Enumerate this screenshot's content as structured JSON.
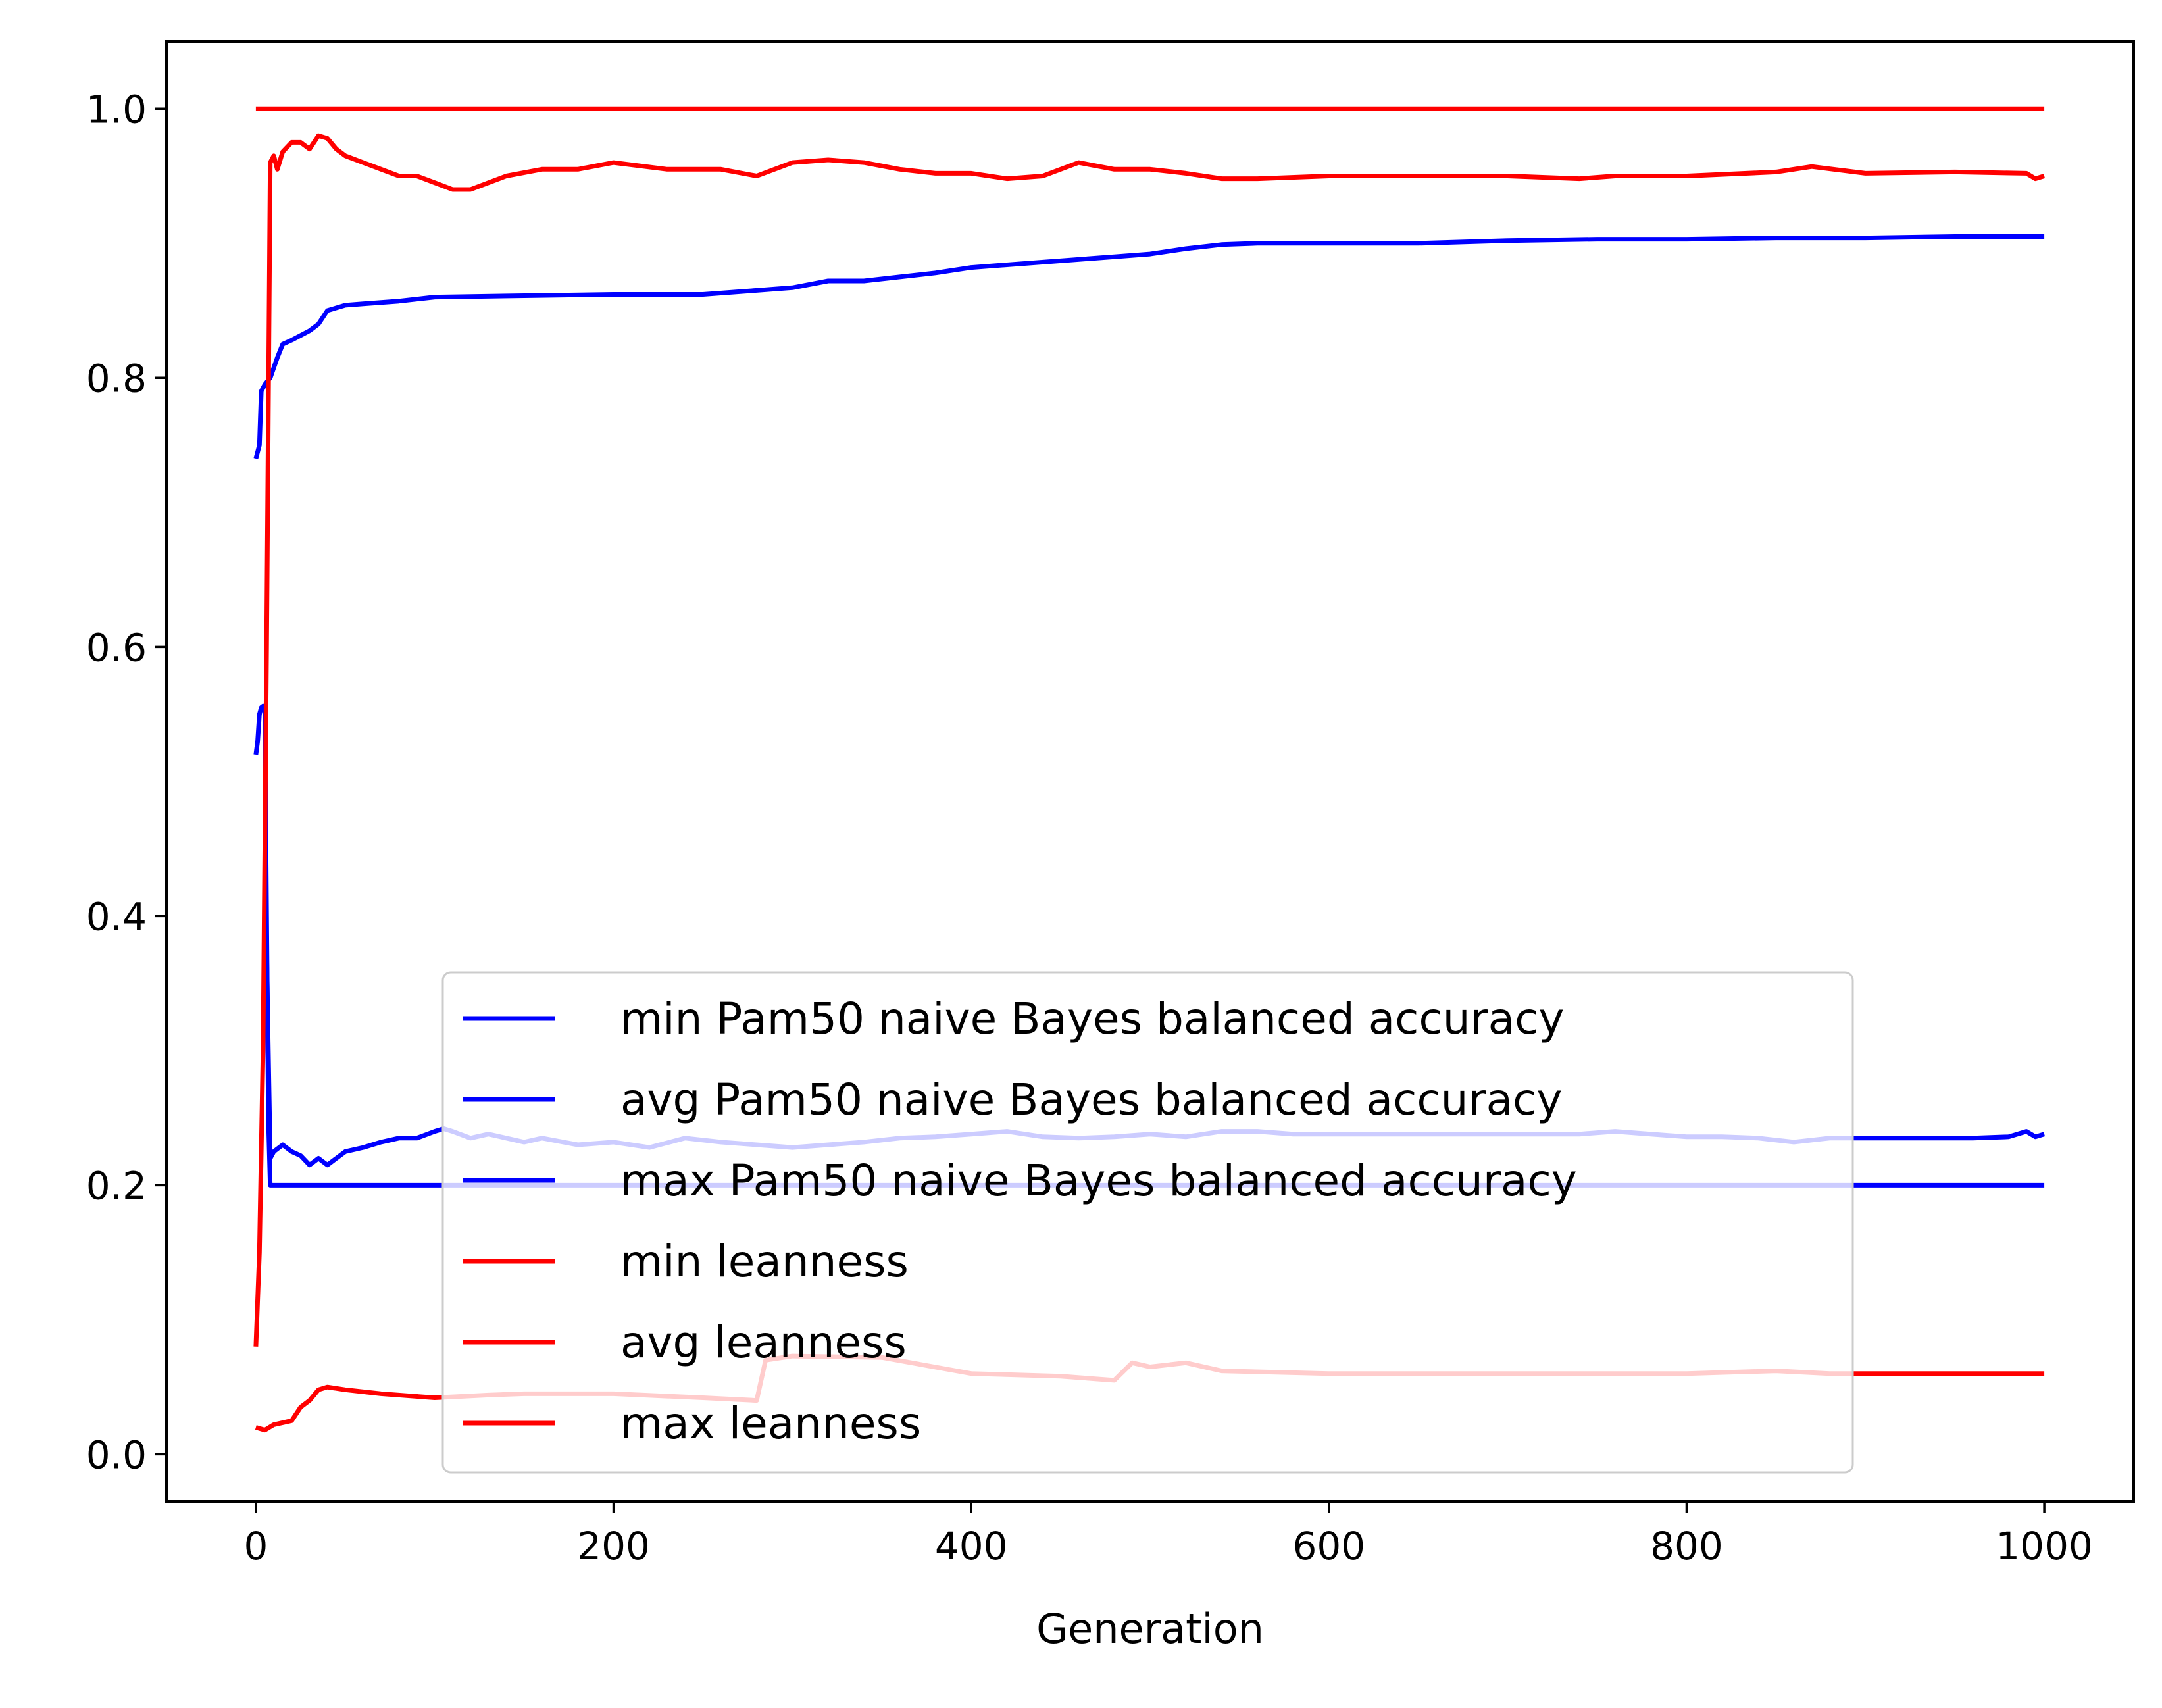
{
  "chart_data": {
    "type": "line",
    "title": "",
    "xlabel": "Generation",
    "ylabel": "",
    "xlim": [
      -50,
      1050
    ],
    "ylim": [
      -0.035,
      1.05
    ],
    "xticks": [
      0,
      200,
      400,
      600,
      800,
      1000
    ],
    "xtick_labels": [
      "0",
      "200",
      "400",
      "600",
      "800",
      "1000"
    ],
    "yticks": [
      0.0,
      0.2,
      0.4,
      0.6,
      0.8,
      1.0
    ],
    "ytick_labels": [
      "0.0",
      "0.2",
      "0.4",
      "0.6",
      "0.8",
      "1.0"
    ],
    "grid": false,
    "legend_position": "lower-center",
    "series": [
      {
        "name": "min Pam50 naive Bayes balanced accuracy",
        "color": "#0000ff",
        "x": [
          0,
          1,
          2,
          3,
          4,
          5,
          6,
          7,
          8,
          1000
        ],
        "y": [
          0.52,
          0.53,
          0.55,
          0.555,
          0.556,
          0.556,
          0.4,
          0.25,
          0.2,
          0.2
        ]
      },
      {
        "name": "avg Pam50 naive Bayes balanced accuracy",
        "color": "#0000ff",
        "x": [
          5,
          8,
          10,
          15,
          20,
          25,
          30,
          35,
          40,
          45,
          50,
          60,
          70,
          80,
          90,
          100,
          105,
          110,
          120,
          130,
          140,
          150,
          160,
          180,
          200,
          220,
          240,
          260,
          280,
          300,
          320,
          340,
          360,
          380,
          400,
          420,
          440,
          460,
          480,
          500,
          520,
          540,
          560,
          580,
          600,
          620,
          640,
          660,
          680,
          700,
          720,
          740,
          760,
          780,
          800,
          820,
          840,
          860,
          880,
          900,
          920,
          940,
          960,
          980,
          990,
          995,
          1000
        ],
        "y": [
          0.45,
          0.22,
          0.225,
          0.23,
          0.225,
          0.222,
          0.215,
          0.22,
          0.215,
          0.22,
          0.225,
          0.228,
          0.232,
          0.235,
          0.235,
          0.24,
          0.242,
          0.24,
          0.235,
          0.238,
          0.235,
          0.232,
          0.235,
          0.23,
          0.232,
          0.228,
          0.235,
          0.232,
          0.23,
          0.228,
          0.23,
          0.232,
          0.235,
          0.236,
          0.238,
          0.24,
          0.236,
          0.235,
          0.236,
          0.238,
          0.236,
          0.24,
          0.24,
          0.238,
          0.238,
          0.238,
          0.238,
          0.238,
          0.238,
          0.238,
          0.238,
          0.238,
          0.24,
          0.238,
          0.236,
          0.236,
          0.235,
          0.232,
          0.235,
          0.235,
          0.235,
          0.235,
          0.235,
          0.236,
          0.24,
          0.236,
          0.238
        ]
      },
      {
        "name": "max Pam50 naive Bayes balanced accuracy",
        "color": "#0000ff",
        "x": [
          0,
          2,
          3,
          5,
          8,
          12,
          15,
          20,
          30,
          35,
          40,
          50,
          60,
          80,
          100,
          150,
          200,
          250,
          280,
          300,
          320,
          340,
          360,
          380,
          400,
          420,
          450,
          480,
          500,
          520,
          540,
          560,
          600,
          650,
          700,
          750,
          800,
          850,
          900,
          950,
          1000
        ],
        "y": [
          0.74,
          0.75,
          0.79,
          0.795,
          0.8,
          0.815,
          0.825,
          0.828,
          0.835,
          0.84,
          0.85,
          0.854,
          0.855,
          0.857,
          0.86,
          0.861,
          0.862,
          0.862,
          0.865,
          0.867,
          0.872,
          0.872,
          0.875,
          0.878,
          0.882,
          0.884,
          0.887,
          0.89,
          0.892,
          0.896,
          0.899,
          0.9,
          0.9,
          0.9,
          0.902,
          0.903,
          0.903,
          0.904,
          0.904,
          0.905,
          0.905
        ]
      },
      {
        "name": "min leanness",
        "color": "#ff0000",
        "x": [
          0,
          5,
          10,
          20,
          25,
          30,
          35,
          40,
          50,
          70,
          100,
          130,
          150,
          200,
          250,
          280,
          285,
          300,
          350,
          400,
          450,
          480,
          490,
          500,
          520,
          540,
          600,
          700,
          800,
          850,
          880,
          900,
          950,
          1000
        ],
        "y": [
          0.02,
          0.018,
          0.022,
          0.025,
          0.035,
          0.04,
          0.048,
          0.05,
          0.048,
          0.045,
          0.042,
          0.044,
          0.045,
          0.045,
          0.042,
          0.04,
          0.07,
          0.073,
          0.072,
          0.06,
          0.058,
          0.055,
          0.068,
          0.065,
          0.068,
          0.062,
          0.06,
          0.06,
          0.06,
          0.062,
          0.06,
          0.06,
          0.06,
          0.06
        ]
      },
      {
        "name": "avg leanness",
        "color": "#ff0000",
        "x": [
          0,
          2,
          4,
          6,
          8,
          10,
          12,
          15,
          20,
          25,
          30,
          35,
          40,
          45,
          50,
          60,
          70,
          80,
          90,
          100,
          110,
          120,
          140,
          160,
          180,
          200,
          230,
          260,
          280,
          300,
          320,
          340,
          360,
          380,
          400,
          420,
          440,
          460,
          480,
          500,
          520,
          540,
          560,
          600,
          650,
          700,
          740,
          760,
          800,
          850,
          870,
          900,
          950,
          990,
          995,
          1000
        ],
        "y": [
          0.08,
          0.15,
          0.3,
          0.6,
          0.96,
          0.965,
          0.955,
          0.968,
          0.975,
          0.975,
          0.97,
          0.98,
          0.978,
          0.97,
          0.965,
          0.96,
          0.955,
          0.95,
          0.95,
          0.945,
          0.94,
          0.94,
          0.95,
          0.955,
          0.955,
          0.96,
          0.955,
          0.955,
          0.95,
          0.96,
          0.962,
          0.96,
          0.955,
          0.952,
          0.952,
          0.948,
          0.95,
          0.96,
          0.955,
          0.955,
          0.952,
          0.948,
          0.948,
          0.95,
          0.95,
          0.95,
          0.948,
          0.95,
          0.95,
          0.953,
          0.957,
          0.952,
          0.953,
          0.952,
          0.948,
          0.95
        ]
      },
      {
        "name": "max leanness",
        "color": "#ff0000",
        "x": [
          0,
          1000
        ],
        "y": [
          1.0,
          1.0
        ]
      }
    ]
  }
}
